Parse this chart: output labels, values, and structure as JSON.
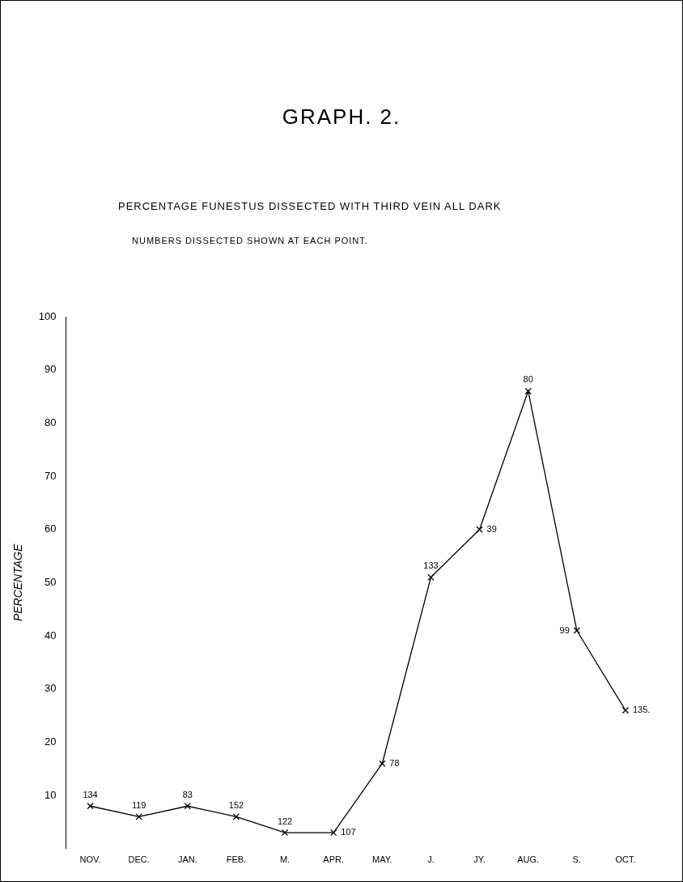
{
  "chart_data": {
    "type": "line",
    "title": "GRAPH. 2.",
    "subtitle": "PERCENTAGE FUNESTUS DISSECTED WITH THIRD VEIN ALL DARK",
    "ylabel": "PERCENTAGE",
    "categories": [
      "NOV.",
      "DEC.",
      "JAN.",
      "FEB.",
      "M.",
      "APR.",
      "MAY.",
      "J.",
      "JY.",
      "AUG.",
      "S.",
      "OCT."
    ],
    "series": [
      {
        "color": "#000000",
        "values": [
          8,
          6,
          8,
          6,
          3,
          3,
          16,
          51,
          60,
          86,
          41,
          26
        ]
      }
    ],
    "marker": "cross",
    "line_style": "solid",
    "ylim": [
      0,
      100
    ],
    "yticks": [
      10,
      20,
      30,
      40,
      50,
      60,
      70,
      80,
      90,
      100
    ],
    "annotations": [
      "NUMBERS DISSECTED SHOWN AT EACH POINT.",
      {
        "text": "134",
        "x": "NOV.",
        "y": 8
      },
      {
        "text": "119",
        "x": "DEC.",
        "y": 6
      },
      {
        "text": "83",
        "x": "JAN.",
        "y": 8
      },
      {
        "text": "152",
        "x": "FEB.",
        "y": 6
      },
      {
        "text": "122",
        "x": "M.",
        "y": 3
      },
      {
        "text": "107",
        "x": "APR.",
        "y": 3
      },
      {
        "text": "78",
        "x": "MAY.",
        "y": 16
      },
      {
        "text": "133",
        "x": "J.",
        "y": 51
      },
      {
        "text": "39",
        "x": "JY.",
        "y": 60
      },
      {
        "text": "80",
        "x": "AUG.",
        "y": 86
      },
      {
        "text": "99",
        "x": "S.",
        "y": 41
      },
      {
        "text": "135.",
        "x": "OCT.",
        "y": 26
      }
    ]
  }
}
